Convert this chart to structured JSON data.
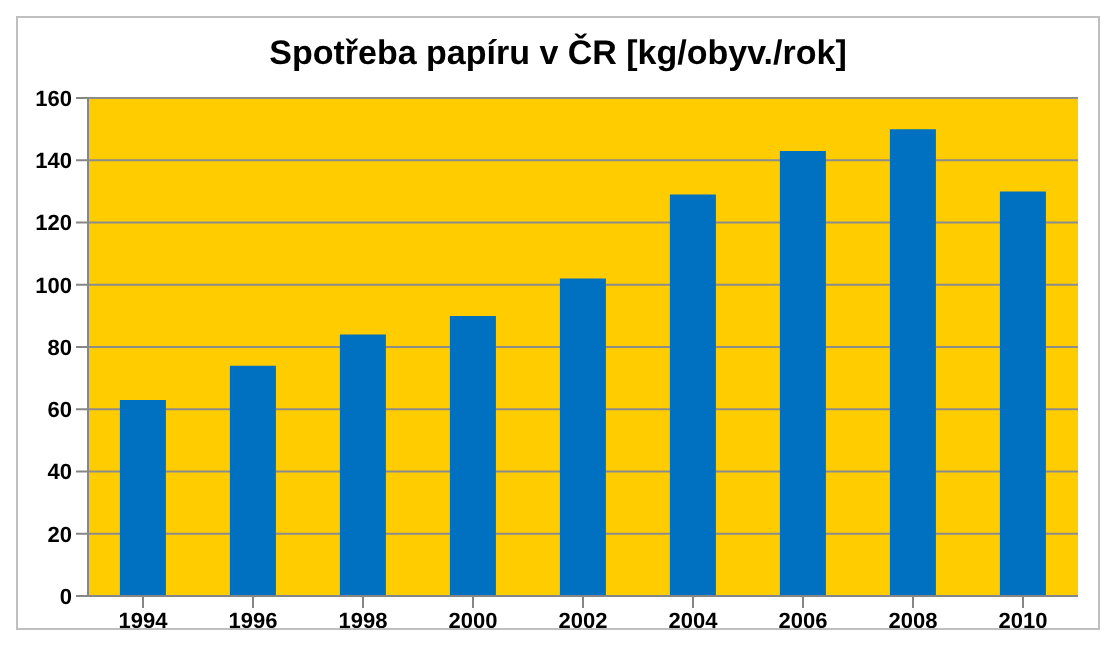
{
  "chart_data": {
    "type": "bar",
    "title": "Spotřeba papíru v ČR [kg/obyv./rok]",
    "categories": [
      "1994",
      "1996",
      "1998",
      "2000",
      "2002",
      "2004",
      "2006",
      "2008",
      "2010"
    ],
    "values": [
      63,
      74,
      84,
      90,
      102,
      129,
      143,
      150,
      130
    ],
    "color": "#0070c0",
    "ylim": [
      0,
      160
    ],
    "yticks": [
      0,
      20,
      40,
      60,
      80,
      100,
      120,
      140,
      160
    ],
    "grid": "y",
    "legend": false
  }
}
